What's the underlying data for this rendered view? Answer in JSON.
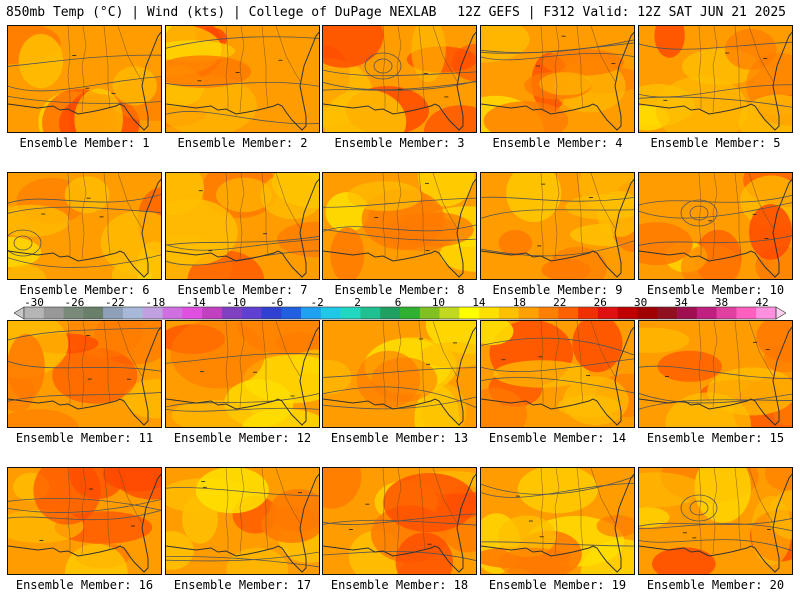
{
  "header": {
    "title": "850mb Temp (°C) | Wind (kts) | College of DuPage NEXLAB",
    "run_info": "12Z GEFS | F312 Valid: 12Z SAT JUN 21 2025"
  },
  "colorbar": {
    "labels": [
      "-30",
      "-26",
      "-22",
      "-18",
      "-14",
      "-10",
      "-6",
      "-2",
      "2",
      "6",
      "10",
      "14",
      "18",
      "22",
      "26",
      "30",
      "34",
      "38",
      "42"
    ],
    "colors": [
      "#b5b5b5",
      "#989898",
      "#7a8a7a",
      "#6a7f6a",
      "#8ea0b8",
      "#a8b8d8",
      "#c0a0e0",
      "#d070e0",
      "#e050e0",
      "#c040c0",
      "#8040c0",
      "#6040d0",
      "#3040d0",
      "#2060e0",
      "#20a0f0",
      "#20c8e8",
      "#20d8c0",
      "#20c090",
      "#20a060",
      "#30b030",
      "#80c020",
      "#c0d820",
      "#ffff00",
      "#ffe000",
      "#ffc000",
      "#ffa000",
      "#ff8000",
      "#ff6000",
      "#f03000",
      "#e01010",
      "#c00000",
      "#a00000",
      "#901020",
      "#a01050",
      "#c02080",
      "#e040a0",
      "#ff60c0",
      "#ff90e0"
    ]
  },
  "panels": [
    {
      "label": "Ensemble Member: 1"
    },
    {
      "label": "Ensemble Member: 2"
    },
    {
      "label": "Ensemble Member: 3"
    },
    {
      "label": "Ensemble Member: 4"
    },
    {
      "label": "Ensemble Member: 5"
    },
    {
      "label": "Ensemble Member: 6"
    },
    {
      "label": "Ensemble Member: 7"
    },
    {
      "label": "Ensemble Member: 8"
    },
    {
      "label": "Ensemble Member: 9"
    },
    {
      "label": "Ensemble Member: 10"
    },
    {
      "label": "Ensemble Member: 11"
    },
    {
      "label": "Ensemble Member: 12"
    },
    {
      "label": "Ensemble Member: 13"
    },
    {
      "label": "Ensemble Member: 14"
    },
    {
      "label": "Ensemble Member: 15"
    },
    {
      "label": "Ensemble Member: 16"
    },
    {
      "label": "Ensemble Member: 17"
    },
    {
      "label": "Ensemble Member: 18"
    },
    {
      "label": "Ensemble Member: 19"
    },
    {
      "label": "Ensemble Member: 20"
    }
  ],
  "palette": {
    "background": "#ff9c00",
    "warm": "#ff7a00",
    "hot": "#ff4a00",
    "cool": "#ffc000",
    "cooler": "#ffe000",
    "coast": "#333333",
    "contour": "#555555"
  }
}
